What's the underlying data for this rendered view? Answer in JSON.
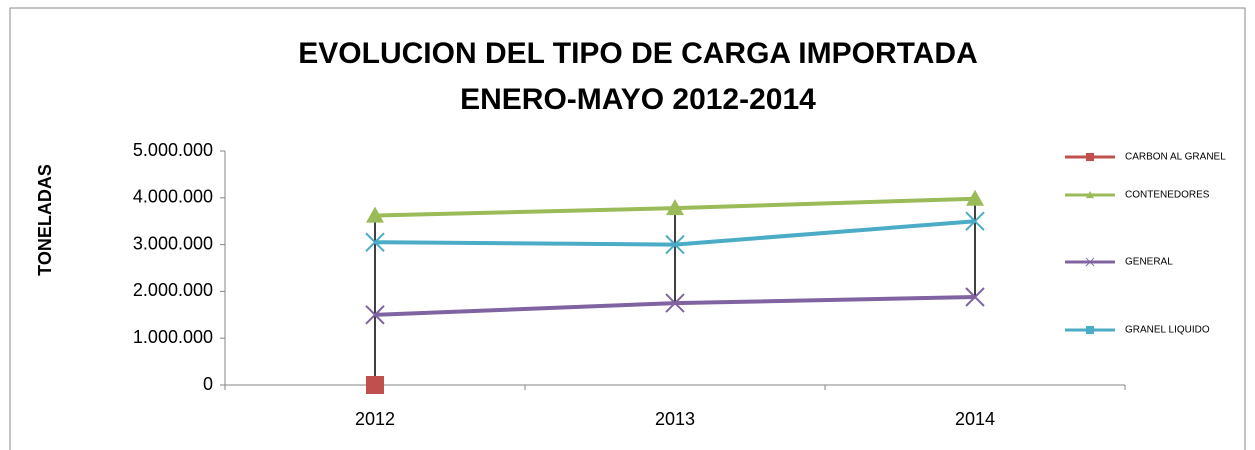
{
  "chart_data": {
    "type": "line",
    "title": "EVOLUCION DEL TIPO DE CARGA IMPORTADA",
    "subtitle": "ENERO-MAYO 2012-2014",
    "y_label": "TONELADAS",
    "categories": [
      "2012",
      "2013",
      "2014"
    ],
    "series": [
      {
        "name": "CARBON AL GRANEL",
        "color": "#c0504d",
        "marker": "square",
        "values": [
          0,
          null,
          null
        ]
      },
      {
        "name": "CONTENEDORES",
        "color": "#9bbb59",
        "marker": "triangle",
        "values": [
          3620000,
          3780000,
          3980000
        ]
      },
      {
        "name": "GENERAL",
        "color": "#8064a2",
        "marker": "x",
        "values": [
          1500000,
          1750000,
          1880000
        ]
      },
      {
        "name": "GRANEL LIQUIDO",
        "color": "#4bacc6",
        "marker": "x",
        "values": [
          3050000,
          3000000,
          3500000
        ]
      }
    ],
    "ylim": [
      0,
      5000000
    ],
    "yticks": [
      0,
      {
        "value": 1000000,
        "label": "1.000.000"
      },
      {
        "value": 2000000,
        "label": "2.000.000"
      },
      {
        "value": 3000000,
        "label": "3.000.000"
      },
      {
        "value": 4000000,
        "label": "4.000.000"
      },
      {
        "value": 5000000,
        "label": "5.000.000"
      }
    ],
    "high_low_lines": true,
    "legend": "right"
  }
}
